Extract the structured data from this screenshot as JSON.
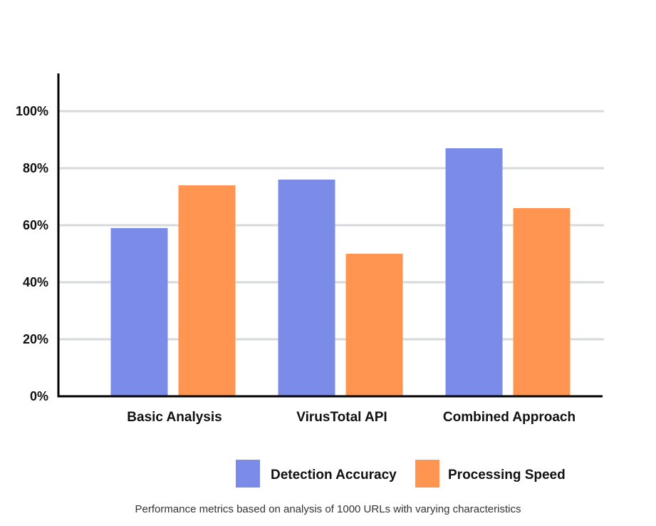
{
  "chart_data": {
    "type": "bar",
    "categories": [
      "Basic Analysis",
      "VirusTotal API",
      "Combined Approach"
    ],
    "series": [
      {
        "name": "Detection Accuracy",
        "color": "#7B8CE8",
        "values": [
          59,
          76,
          87
        ]
      },
      {
        "name": "Processing Speed",
        "color": "#FF9550",
        "values": [
          74,
          50,
          66
        ]
      }
    ],
    "y_ticks": [
      {
        "value": 0,
        "label": "0%"
      },
      {
        "value": 20,
        "label": "20%"
      },
      {
        "value": 40,
        "label": "40%"
      },
      {
        "value": 60,
        "label": "60%"
      },
      {
        "value": 80,
        "label": "80%"
      },
      {
        "value": 100,
        "label": "100%"
      }
    ],
    "ylim": [
      0,
      112
    ],
    "grid": true,
    "legend_position": "bottom-right",
    "caption": "Performance metrics based on analysis of 1000 URLs with varying characteristics",
    "colors": {
      "grid": "#D5DADD",
      "axis": "#000000"
    }
  }
}
